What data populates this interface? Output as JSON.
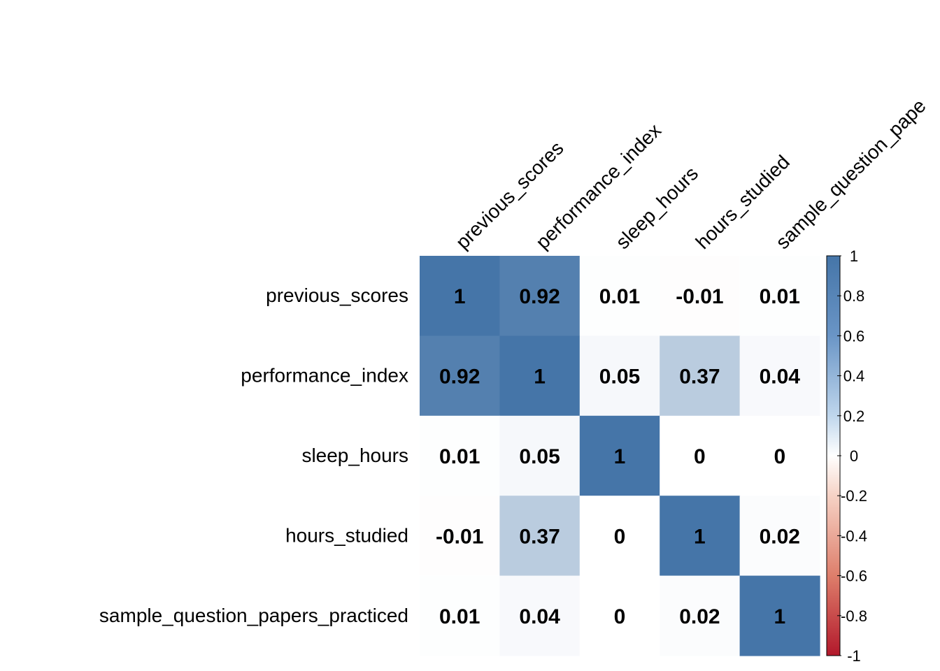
{
  "chart_data": {
    "type": "heatmap",
    "title": "",
    "variables": [
      "previous_scores",
      "performance_index",
      "sleep_hours",
      "hours_studied",
      "sample_question_papers_practiced"
    ],
    "column_labels": [
      "previous_scores",
      "performance_index",
      "sleep_hours",
      "hours_studied",
      "sample_question_pape"
    ],
    "values": [
      [
        1,
        0.92,
        0.01,
        -0.01,
        0.01
      ],
      [
        0.92,
        1,
        0.05,
        0.37,
        0.04
      ],
      [
        0.01,
        0.05,
        1,
        0,
        0
      ],
      [
        -0.01,
        0.37,
        0,
        1,
        0.02
      ],
      [
        0.01,
        0.04,
        0,
        0.02,
        1
      ]
    ],
    "color_scale": {
      "range": [
        -1,
        1
      ],
      "low_color": "#B2182B",
      "mid_color": "#FFFFFF",
      "high_color": "#4575A8",
      "ticks": [
        1,
        0.8,
        0.6,
        0.4,
        0.2,
        0,
        -0.2,
        -0.4,
        -0.6,
        -0.8,
        -1
      ],
      "tick_labels": [
        "1",
        "0.8",
        "0.6",
        "0.4",
        "0.2",
        "0",
        "-0.2",
        "-0.4",
        "-0.6",
        "-0.8",
        "-1"
      ]
    },
    "legend_placement": "right",
    "grid": false
  }
}
